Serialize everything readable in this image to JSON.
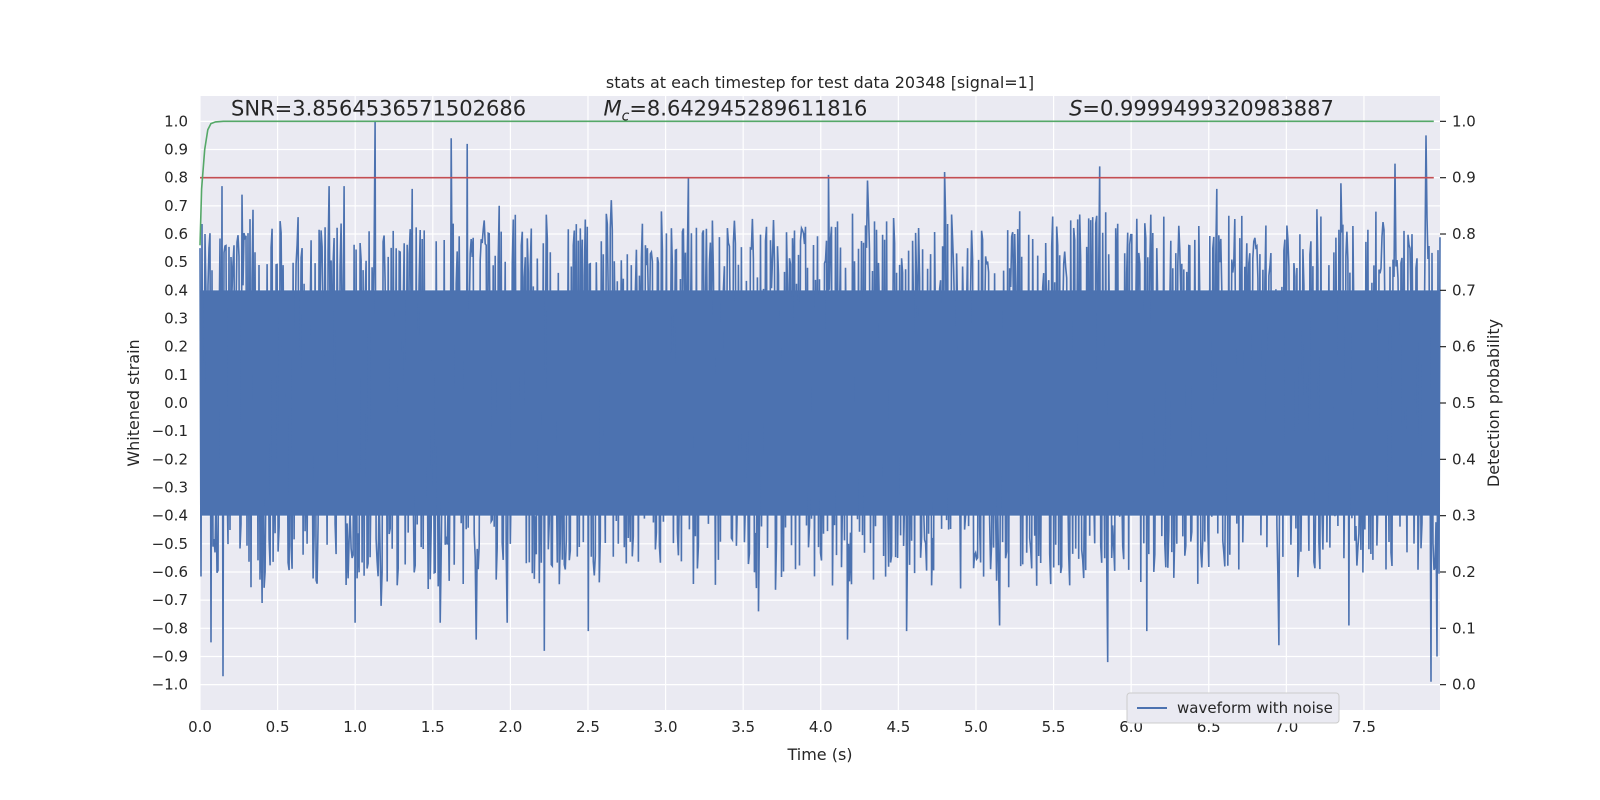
{
  "chart_data": {
    "type": "line",
    "title": "stats at each timestep for test data 20348 [signal=1]",
    "xlabel": "Time (s)",
    "ylabel_left": "Whitened strain",
    "ylabel_right": "Detection probability",
    "xlim": [
      0,
      7.99
    ],
    "ylim_left": [
      -1.09,
      1.09
    ],
    "ylim_right": [
      -0.045,
      1.045
    ],
    "x_ticks": [
      0.0,
      0.5,
      1.0,
      1.5,
      2.0,
      2.5,
      3.0,
      3.5,
      4.0,
      4.5,
      5.0,
      5.5,
      6.0,
      6.5,
      7.0,
      7.5
    ],
    "x_tick_labels": [
      "0.0",
      "0.5",
      "1.0",
      "1.5",
      "2.0",
      "2.5",
      "3.0",
      "3.5",
      "4.0",
      "4.5",
      "5.0",
      "5.5",
      "6.0",
      "6.5",
      "7.0",
      "7.5"
    ],
    "y_ticks_left": [
      1.0,
      0.9,
      0.8,
      0.7,
      0.6,
      0.5,
      0.4,
      0.3,
      0.2,
      0.1,
      0.0,
      -0.1,
      -0.2,
      -0.3,
      -0.4,
      -0.5,
      -0.6,
      -0.7,
      -0.8,
      -0.9,
      -1.0
    ],
    "y_tick_labels_left": [
      "1.0",
      "0.9",
      "0.8",
      "0.7",
      "0.6",
      "0.5",
      "0.4",
      "0.3",
      "0.2",
      "0.1",
      "0.0",
      "−0.1",
      "−0.2",
      "−0.3",
      "−0.4",
      "−0.5",
      "−0.6",
      "−0.7",
      "−0.8",
      "−0.9",
      "−1.0"
    ],
    "y_ticks_right": [
      1.0,
      0.9,
      0.8,
      0.7,
      0.6,
      0.5,
      0.4,
      0.3,
      0.2,
      0.1,
      0.0
    ],
    "y_tick_labels_right": [
      "1.0",
      "0.9",
      "0.8",
      "0.7",
      "0.6",
      "0.5",
      "0.4",
      "0.3",
      "0.2",
      "0.1",
      "0.0"
    ],
    "grid": true,
    "colors": {
      "background": "#eaeaf2",
      "grid": "#ffffff",
      "waveform": "#4c72b0",
      "detection": "#55a868",
      "threshold": "#c44e52"
    },
    "series": [
      {
        "name": "waveform with noise",
        "kind": "noisy waveform",
        "axis": "left",
        "core_range": [
          -0.4,
          0.4
        ],
        "spikes_positive": [
          [
            0.03,
            0.6
          ],
          [
            0.06,
            0.55
          ],
          [
            0.14,
            0.77
          ],
          [
            0.27,
            0.74
          ],
          [
            0.63,
            0.66
          ],
          [
            0.83,
            0.77
          ],
          [
            0.93,
            0.77
          ],
          [
            1.13,
            1.0
          ],
          [
            1.37,
            0.76
          ],
          [
            1.62,
            0.94
          ],
          [
            1.72,
            0.92
          ],
          [
            1.93,
            0.7
          ],
          [
            2.45,
            0.62
          ],
          [
            2.65,
            0.72
          ],
          [
            3.15,
            0.8
          ],
          [
            3.6,
            0.76
          ],
          [
            4.05,
            0.81
          ],
          [
            4.3,
            0.79
          ],
          [
            4.8,
            0.82
          ],
          [
            5.25,
            0.6
          ],
          [
            5.8,
            0.84
          ],
          [
            6.55,
            0.76
          ],
          [
            7.35,
            0.78
          ],
          [
            7.7,
            0.85
          ],
          [
            7.9,
            0.95
          ]
        ],
        "spikes_negative": [
          [
            0.07,
            -0.85
          ],
          [
            0.15,
            -0.97
          ],
          [
            0.4,
            -0.71
          ],
          [
            1.0,
            -0.78
          ],
          [
            1.17,
            -0.72
          ],
          [
            1.55,
            -0.78
          ],
          [
            1.78,
            -0.84
          ],
          [
            1.98,
            -0.78
          ],
          [
            2.22,
            -0.88
          ],
          [
            2.5,
            -0.81
          ],
          [
            3.6,
            -0.74
          ],
          [
            4.17,
            -0.84
          ],
          [
            4.55,
            -0.81
          ],
          [
            5.15,
            -0.79
          ],
          [
            5.85,
            -0.92
          ],
          [
            6.1,
            -0.81
          ],
          [
            6.95,
            -0.86
          ],
          [
            7.4,
            -0.79
          ],
          [
            7.93,
            -0.99
          ],
          [
            7.97,
            -0.9
          ]
        ]
      },
      {
        "name": "",
        "kind": "detection probability",
        "axis": "right",
        "x": [
          0.0,
          0.01,
          0.03,
          0.05,
          0.07,
          0.1,
          0.15,
          0.2,
          7.95
        ],
        "y": [
          0.78,
          0.88,
          0.95,
          0.985,
          0.996,
          0.999,
          1.0,
          1.0,
          1.0
        ]
      },
      {
        "name": "",
        "kind": "threshold",
        "axis": "right",
        "x": [
          0.0,
          7.95
        ],
        "y": [
          0.9,
          0.9
        ]
      }
    ],
    "annotations": [
      {
        "text": "SNR=3.8564536571502686",
        "x": 0.2,
        "y_right": 1.0
      },
      {
        "text_symbol": "M",
        "text_sub": "c",
        "text_rest": "=8.642945289611816",
        "x": 2.6,
        "y_right": 1.0
      },
      {
        "text_symbol": "S",
        "text_rest": "=0.9999499320983887",
        "x": 5.6,
        "y_right": 1.0
      }
    ],
    "legend": {
      "placement": "lower-right",
      "entries": [
        "waveform with noise"
      ]
    }
  }
}
